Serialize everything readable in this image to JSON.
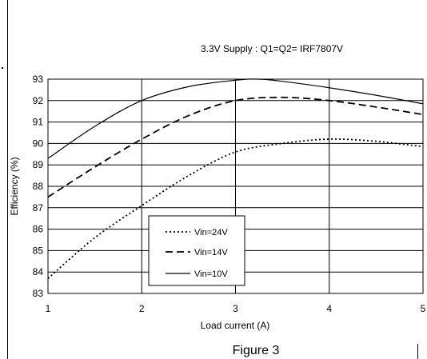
{
  "caption": "Figure 3",
  "chart_data": {
    "type": "line",
    "title": "3.3V Supply : Q1=Q2= IRF7807V",
    "xlabel": "Load current (A)",
    "ylabel": "Efficiency (%)",
    "xlim": [
      1,
      5
    ],
    "ylim": [
      83,
      93
    ],
    "xticks": [
      1,
      2,
      3,
      4,
      5
    ],
    "yticks": [
      83,
      84,
      85,
      86,
      87,
      88,
      89,
      90,
      91,
      92,
      93
    ],
    "grid": true,
    "legend_position": "bottom-center",
    "series": [
      {
        "name": "Vin=24V",
        "style": "dotted",
        "x": [
          1,
          1.5,
          2,
          2.5,
          3,
          3.5,
          4,
          4.5,
          5
        ],
        "y": [
          83.7,
          85.6,
          87.1,
          88.5,
          89.6,
          90.0,
          90.2,
          90.1,
          89.85
        ]
      },
      {
        "name": "Vin=14V",
        "style": "dashed",
        "x": [
          1,
          1.5,
          2,
          2.5,
          3,
          3.5,
          4,
          4.5,
          5
        ],
        "y": [
          87.5,
          88.9,
          90.2,
          91.3,
          92.0,
          92.15,
          92.0,
          91.7,
          91.35
        ]
      },
      {
        "name": "Vin=10V",
        "style": "solid",
        "x": [
          1,
          1.5,
          2,
          2.5,
          3,
          3.25,
          3.5,
          4,
          4.5,
          5
        ],
        "y": [
          89.3,
          90.8,
          92.0,
          92.65,
          92.95,
          93.0,
          92.9,
          92.6,
          92.25,
          91.85
        ]
      }
    ]
  }
}
